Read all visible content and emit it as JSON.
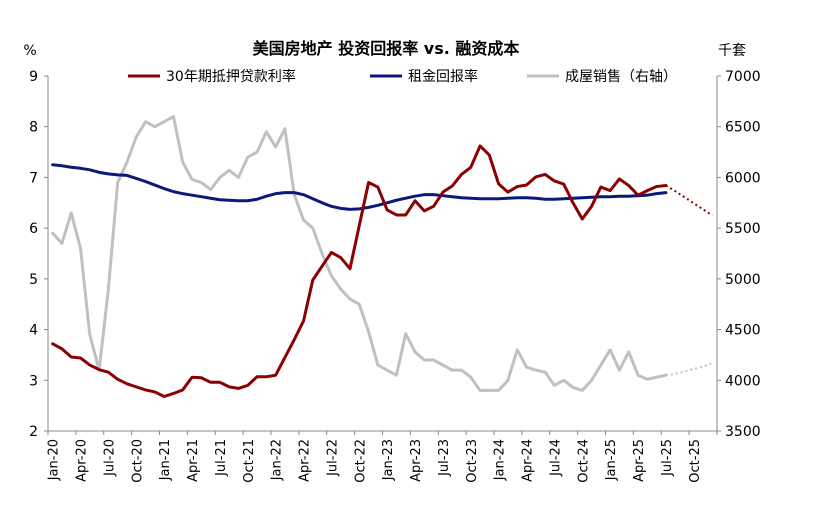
{
  "chart_data": {
    "type": "line",
    "title": "美国房地产 投资回报率 vs. 融资成本",
    "ylabel_left": "%",
    "ylabel_right": "千套",
    "ylim_left": [
      2,
      9
    ],
    "ylim_right": [
      3500,
      7000
    ],
    "yticks_left": [
      "2",
      "3",
      "4",
      "5",
      "6",
      "7",
      "8",
      "9"
    ],
    "yticks_right": [
      "3500",
      "4000",
      "4500",
      "5000",
      "5500",
      "6000",
      "6500",
      "7000"
    ],
    "x_start": "2020-01",
    "x_end": "2025-12",
    "xtick_labels": [
      "Jan-20",
      "Apr-20",
      "Jul-20",
      "Oct-20",
      "Jan-21",
      "Apr-21",
      "Jul-21",
      "Oct-21",
      "Jan-22",
      "Apr-22",
      "Jul-22",
      "Oct-22",
      "Jan-23",
      "Apr-23",
      "Jul-23",
      "Oct-23",
      "Jan-24",
      "Apr-24",
      "Jul-24",
      "Oct-24",
      "Jan-25",
      "Apr-25",
      "Jul-25",
      "Oct-25"
    ],
    "legend": [
      "30年期抵押贷款利率",
      "租金回报率",
      "成屋销售（右轴）"
    ],
    "colors": {
      "mortgage": "#8b0000",
      "rent": "#0a1a7a",
      "sales": "#c0c0c0",
      "axis": "#888888"
    },
    "series": [
      {
        "name": "30年期抵押贷款利率",
        "axis": "left",
        "values": [
          3.72,
          3.62,
          3.46,
          3.44,
          3.3,
          3.21,
          3.16,
          3.02,
          2.93,
          2.87,
          2.81,
          2.77,
          2.68,
          2.74,
          2.81,
          3.06,
          3.05,
          2.96,
          2.96,
          2.87,
          2.84,
          2.9,
          3.07,
          3.07,
          3.1,
          3.45,
          3.8,
          4.17,
          4.98,
          5.25,
          5.52,
          5.42,
          5.2,
          6.05,
          6.9,
          6.81,
          6.36,
          6.26,
          6.26,
          6.54,
          6.34,
          6.43,
          6.71,
          6.83,
          7.06,
          7.2,
          7.62,
          7.44,
          6.87,
          6.71,
          6.82,
          6.85,
          7.01,
          7.06,
          6.93,
          6.87,
          6.5,
          6.18,
          6.43,
          6.81,
          6.74,
          6.97,
          6.84,
          6.65,
          6.74,
          6.82,
          6.84
        ],
        "forecast": [
          6.84,
          6.75,
          6.65,
          6.55,
          6.45,
          6.35,
          6.25
        ]
      },
      {
        "name": "租金回报率",
        "axis": "left",
        "values": [
          7.25,
          7.23,
          7.2,
          7.18,
          7.15,
          7.1,
          7.07,
          7.05,
          7.04,
          6.98,
          6.92,
          6.85,
          6.78,
          6.72,
          6.68,
          6.65,
          6.62,
          6.59,
          6.56,
          6.55,
          6.54,
          6.54,
          6.57,
          6.63,
          6.68,
          6.7,
          6.7,
          6.66,
          6.58,
          6.5,
          6.43,
          6.39,
          6.37,
          6.38,
          6.41,
          6.45,
          6.5,
          6.55,
          6.59,
          6.63,
          6.66,
          6.66,
          6.64,
          6.62,
          6.6,
          6.59,
          6.58,
          6.58,
          6.58,
          6.59,
          6.6,
          6.6,
          6.59,
          6.57,
          6.57,
          6.58,
          6.59,
          6.6,
          6.61,
          6.62,
          6.62,
          6.63,
          6.63,
          6.64,
          6.65,
          6.68,
          6.7
        ]
      },
      {
        "name": "成屋销售（右轴）",
        "axis": "right",
        "values": [
          5450,
          5350,
          5650,
          5300,
          4450,
          4100,
          4900,
          5950,
          6150,
          6400,
          6550,
          6500,
          6550,
          6600,
          6150,
          5980,
          5950,
          5880,
          6000,
          6070,
          6000,
          6200,
          6250,
          6450,
          6300,
          6480,
          5830,
          5580,
          5500,
          5250,
          5030,
          4900,
          4800,
          4750,
          4480,
          4150,
          4100,
          4050,
          4460,
          4280,
          4200,
          4200,
          4150,
          4100,
          4100,
          4030,
          3900,
          3900,
          3900,
          4000,
          4300,
          4130,
          4100,
          4080,
          3950,
          4000,
          3930,
          3900,
          4000,
          4150,
          4300,
          4100,
          4280,
          4050,
          4010,
          4030,
          4050
        ],
        "forecast": [
          4050,
          4060,
          4080,
          4100,
          4120,
          4140,
          4170
        ]
      }
    ]
  }
}
